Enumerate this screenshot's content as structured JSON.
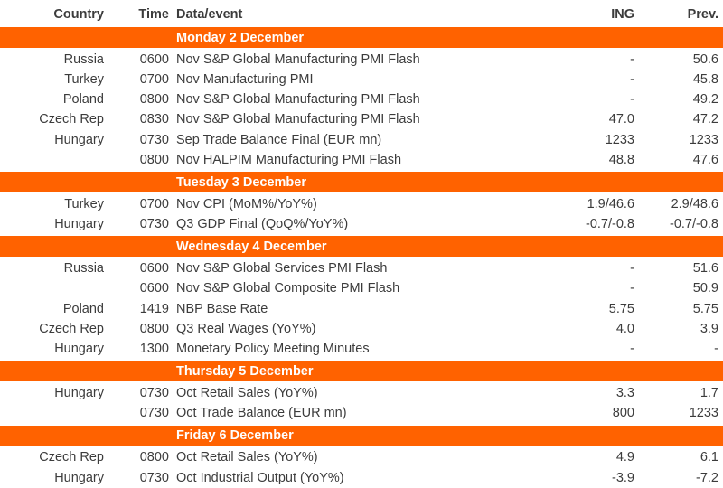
{
  "table": {
    "accent_color": "#FF6200",
    "text_color": "#3C3C3C",
    "columns": {
      "country": "Country",
      "time": "Time",
      "event": "Data/event",
      "ing": "ING",
      "prev": "Prev."
    },
    "sections": [
      {
        "day": "Monday 2 December",
        "rows": [
          {
            "country": "Russia",
            "time": "0600",
            "event": "Nov S&P Global Manufacturing PMI Flash",
            "ing": "-",
            "prev": "50.6"
          },
          {
            "country": "Turkey",
            "time": "0700",
            "event": "Nov Manufacturing PMI",
            "ing": "-",
            "prev": "45.8"
          },
          {
            "country": "Poland",
            "time": "0800",
            "event": "Nov S&P Global Manufacturing PMI Flash",
            "ing": "-",
            "prev": "49.2"
          },
          {
            "country": "Czech Rep",
            "time": "0830",
            "event": "Nov S&P Global Manufacturing PMI Flash",
            "ing": "47.0",
            "prev": "47.2"
          },
          {
            "country": "Hungary",
            "time": "0730",
            "event": "Sep Trade Balance Final (EUR mn)",
            "ing": "1233",
            "prev": "1233"
          },
          {
            "country": "",
            "time": "0800",
            "event": "Nov HALPIM Manufacturing PMI Flash",
            "ing": "48.8",
            "prev": "47.6"
          }
        ]
      },
      {
        "day": "Tuesday 3 December",
        "rows": [
          {
            "country": "Turkey",
            "time": "0700",
            "event": "Nov CPI (MoM%/YoY%)",
            "ing": "1.9/46.6",
            "prev": "2.9/48.6"
          },
          {
            "country": "Hungary",
            "time": "0730",
            "event": "Q3 GDP Final (QoQ%/YoY%)",
            "ing": "-0.7/-0.8",
            "prev": "-0.7/-0.8"
          }
        ]
      },
      {
        "day": "Wednesday 4 December",
        "rows": [
          {
            "country": "Russia",
            "time": "0600",
            "event": "Nov S&P Global Services PMI Flash",
            "ing": "-",
            "prev": "51.6"
          },
          {
            "country": "",
            "time": "0600",
            "event": "Nov S&P Global Composite PMI Flash",
            "ing": "-",
            "prev": "50.9"
          },
          {
            "country": "Poland",
            "time": "1419",
            "event": "NBP Base Rate",
            "ing": "5.75",
            "prev": "5.75"
          },
          {
            "country": "Czech Rep",
            "time": "0800",
            "event": "Q3 Real Wages (YoY%)",
            "ing": "4.0",
            "prev": "3.9"
          },
          {
            "country": "Hungary",
            "time": "1300",
            "event": "Monetary Policy Meeting Minutes",
            "ing": "-",
            "prev": "-"
          }
        ]
      },
      {
        "day": "Thursday 5 December",
        "rows": [
          {
            "country": "Hungary",
            "time": "0730",
            "event": "Oct Retail Sales (YoY%)",
            "ing": "3.3",
            "prev": "1.7"
          },
          {
            "country": "",
            "time": "0730",
            "event": "Oct Trade Balance (EUR mn)",
            "ing": "800",
            "prev": "1233"
          }
        ]
      },
      {
        "day": "Friday 6 December",
        "rows": [
          {
            "country": "Czech Rep",
            "time": "0800",
            "event": "Oct Retail Sales (YoY%)",
            "ing": "4.9",
            "prev": "6.1"
          },
          {
            "country": "Hungary",
            "time": "0730",
            "event": "Oct Industrial Output (YoY%)",
            "ing": "-3.9",
            "prev": "-7.2"
          }
        ]
      }
    ]
  }
}
